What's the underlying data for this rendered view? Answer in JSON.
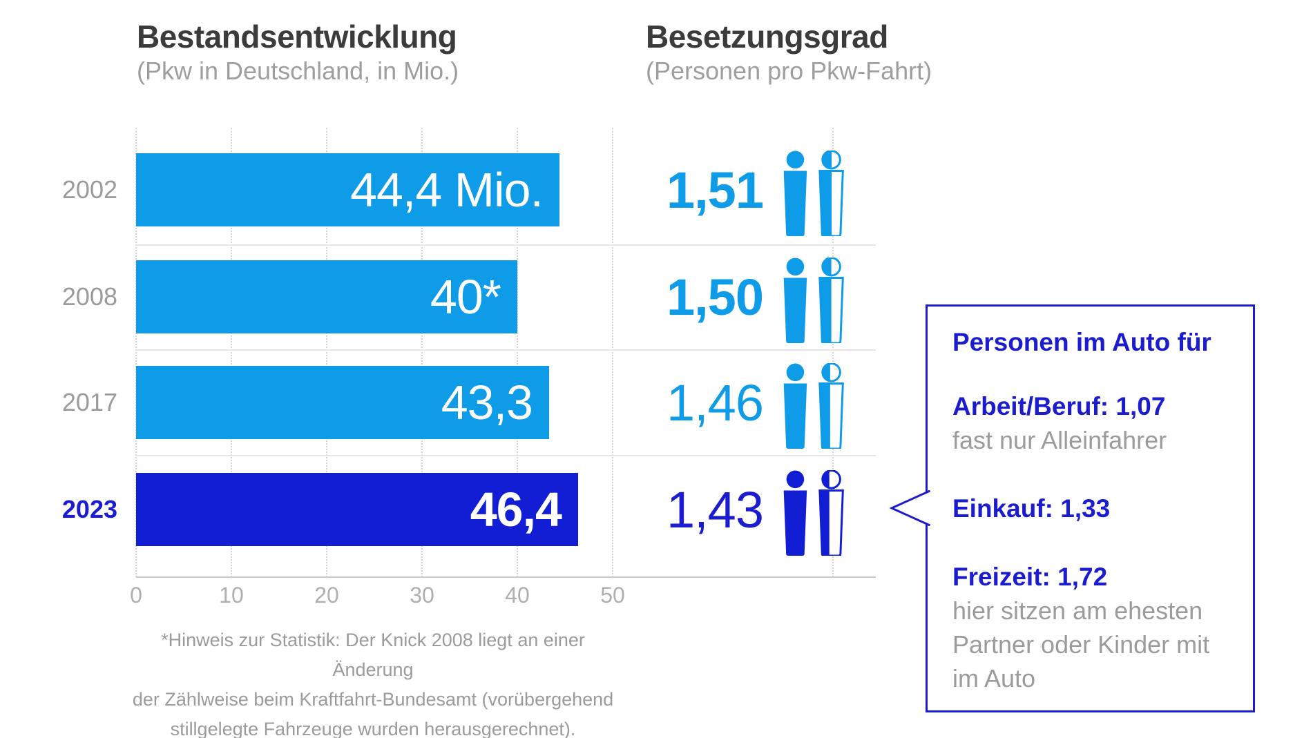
{
  "colors": {
    "light_blue": "#0E9BE8",
    "dark_blue": "#111ED3",
    "accent_text_blue": "#1B1BD0",
    "gray_text": "#9B9B9B",
    "title_gray": "#3B3B3B"
  },
  "chart_data": [
    {
      "type": "bar",
      "orientation": "horizontal",
      "title": "Bestandsentwicklung",
      "subtitle": "(Pkw in Deutschland, in Mio.)",
      "categories": [
        "2002",
        "2008",
        "2017",
        "2023"
      ],
      "values": [
        44.4,
        40,
        43.3,
        46.4
      ],
      "value_labels": [
        "44,4 Mio.",
        "40*",
        "43,3",
        "46,4"
      ],
      "xlim": [
        0,
        50
      ],
      "xticks": [
        "0",
        "10",
        "20",
        "30",
        "40",
        "50"
      ],
      "grid": "dotted vertical gridlines",
      "highlight_category": "2023"
    },
    {
      "type": "pictogram",
      "title": "Besetzungsgrad",
      "subtitle": "(Personen pro Pkw-Fahrt)",
      "categories": [
        "2002",
        "2008",
        "2017",
        "2023"
      ],
      "values": [
        1.51,
        1.5,
        1.46,
        1.43
      ],
      "value_labels": [
        "1,51",
        "1,50",
        "1,46",
        "1,43"
      ],
      "icon": "person-pictogram",
      "icon_note": "one full person icon plus one partially filled person icon per row"
    }
  ],
  "callout": {
    "title": "Personen im Auto für",
    "items": [
      {
        "label": "Arbeit/Beruf:",
        "value": "1,07",
        "note": "fast nur Alleinfahrer"
      },
      {
        "label": "Einkauf:",
        "value": "1,33",
        "note": ""
      },
      {
        "label": "Freizeit:",
        "value": "1,72",
        "note": "hier sitzen am ehesten Partner oder Kinder mit im Auto"
      }
    ]
  },
  "footnote_lines": [
    "*Hinweis zur Statistik: Der Knick 2008 liegt an einer Änderung",
    "der Zählweise beim Kraftfahrt-Bundesamt (vorübergehend",
    "stillgelegte Fahrzeuge wurden herausgerechnet)."
  ]
}
